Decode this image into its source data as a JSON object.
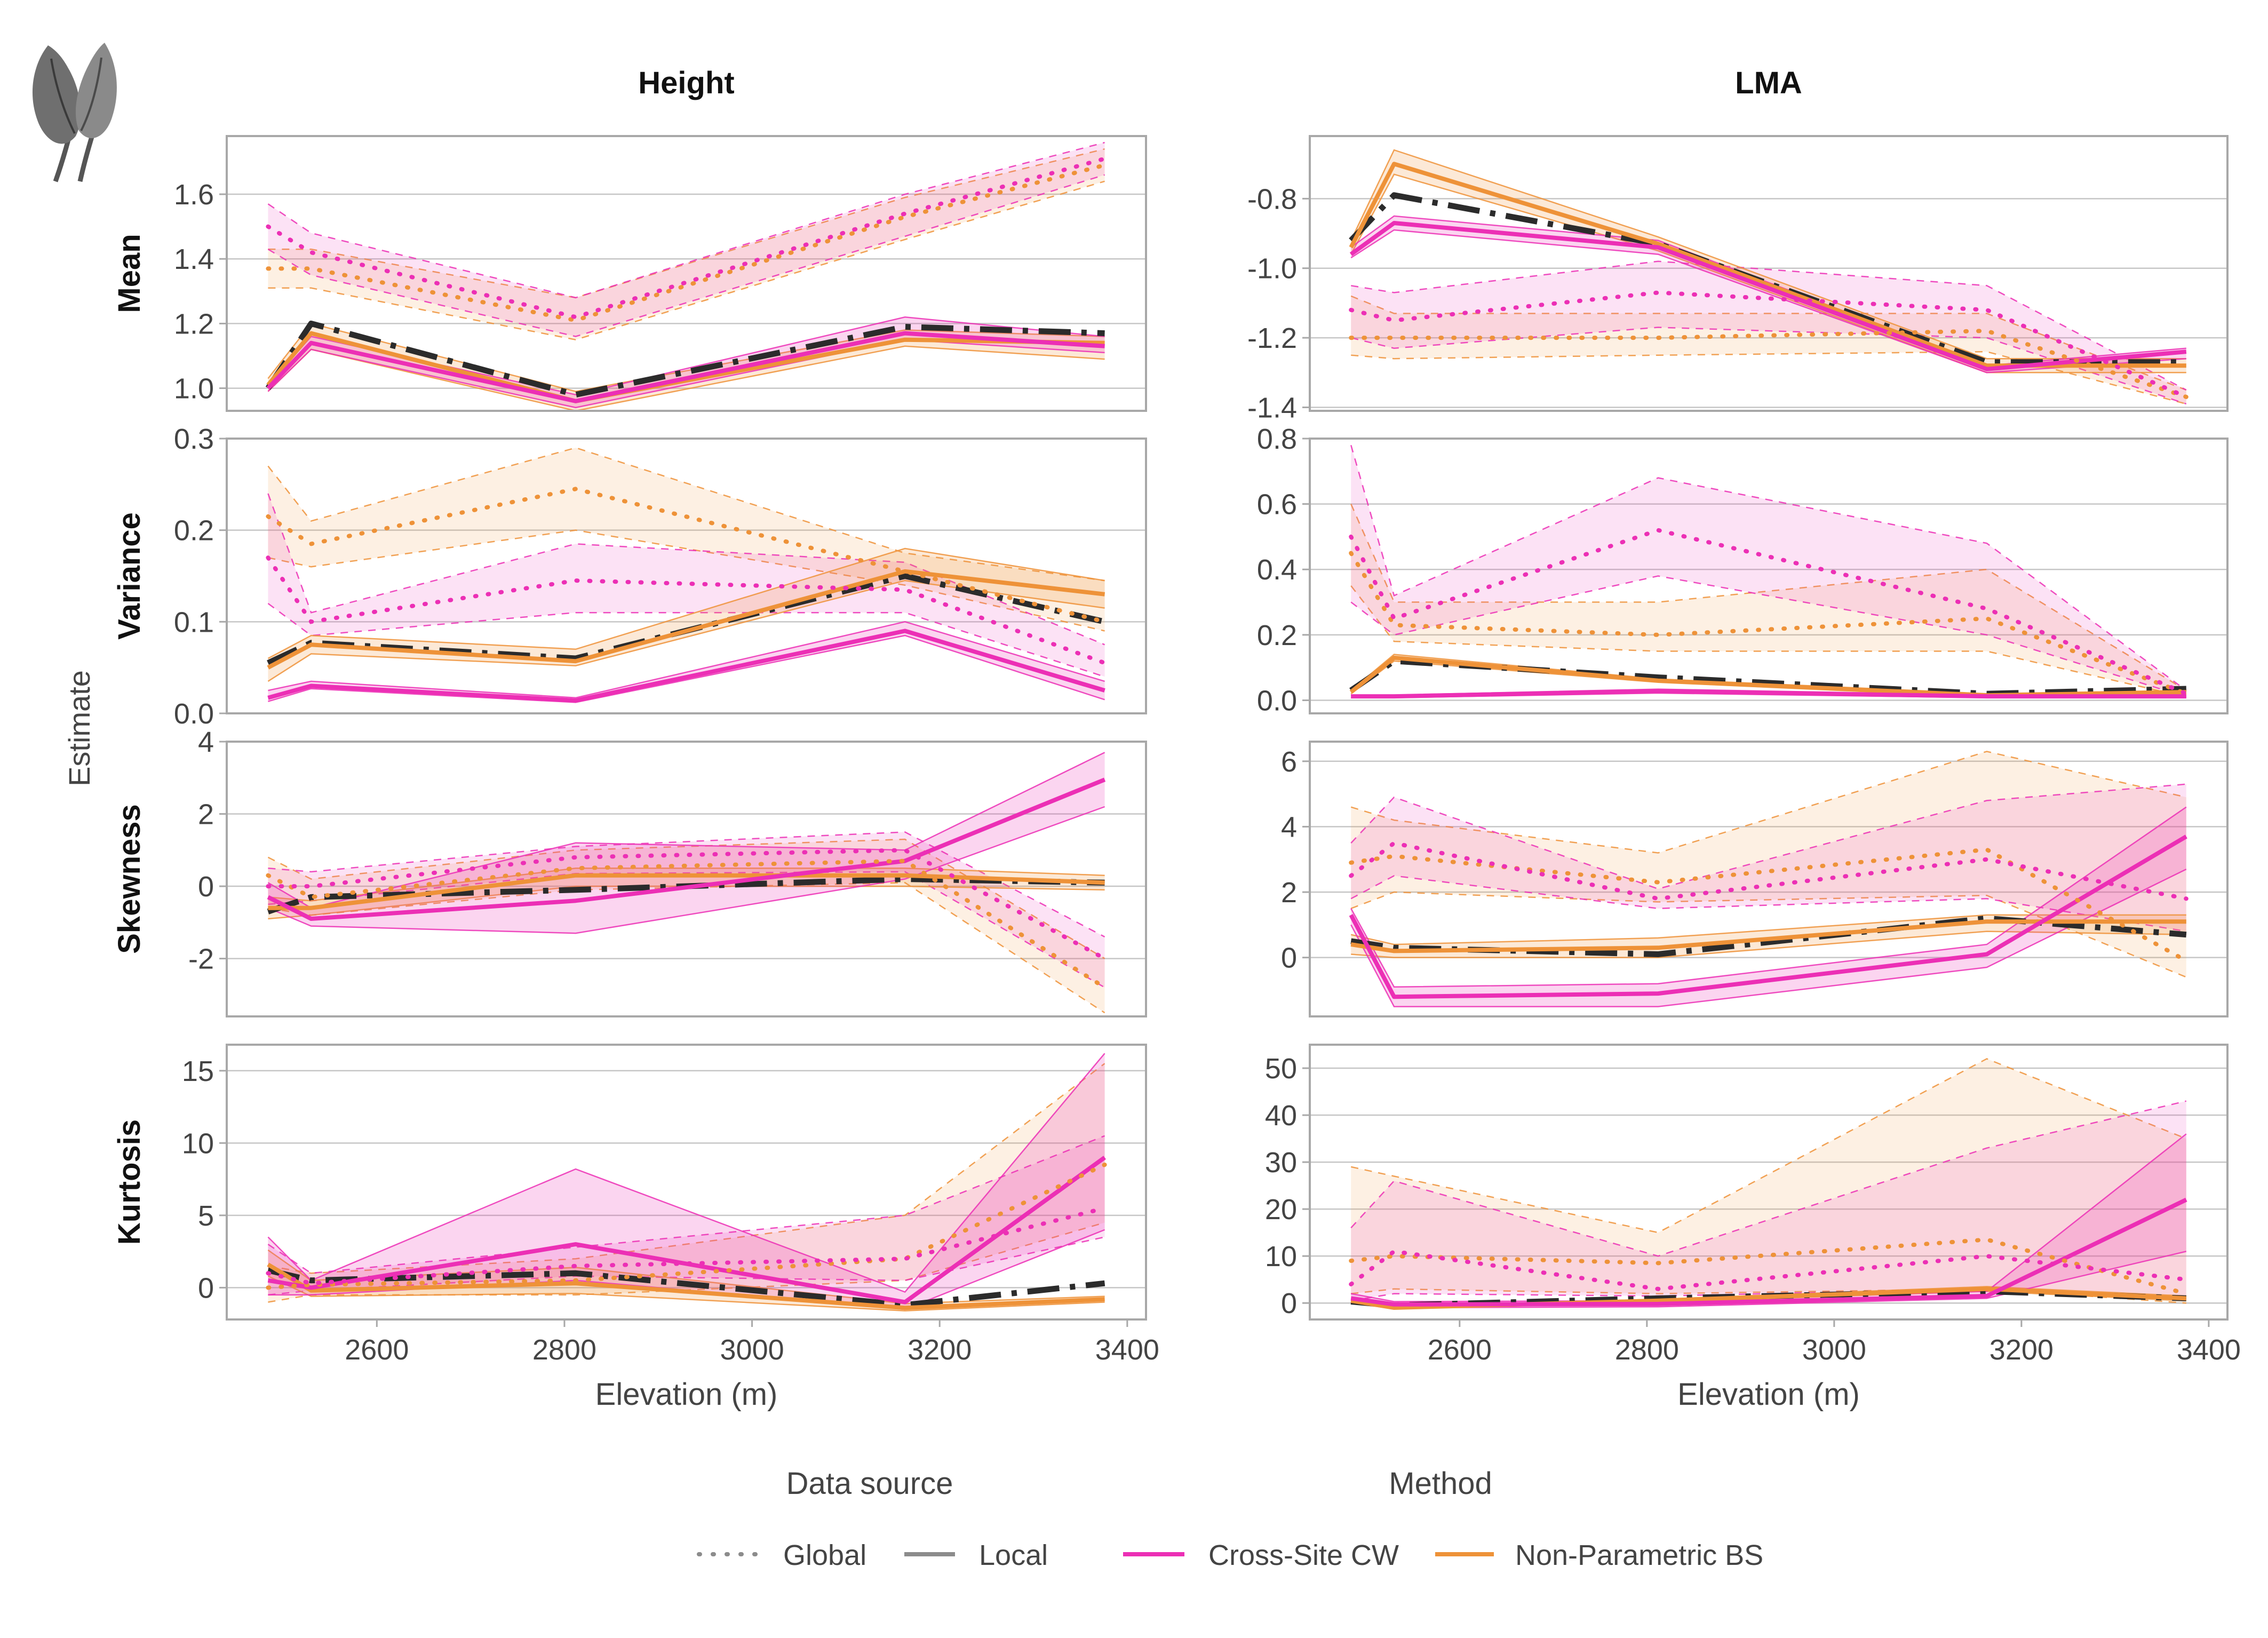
{
  "chart_data": {
    "type": "line",
    "xlabel": "Elevation (m)",
    "ylabel": "Estimate",
    "column_titles": [
      "Height",
      "LMA"
    ],
    "row_titles": [
      "Mean",
      "Variance",
      "Skewness",
      "Kurtosis"
    ],
    "x": [
      2484,
      2530,
      2812,
      3163,
      3376
    ],
    "xlim": [
      2440,
      3420
    ],
    "xticks": [
      2600,
      2800,
      3000,
      3200,
      3400
    ],
    "grid": true,
    "legend_position": "bottom",
    "legend": {
      "data_source_title": "Data source",
      "method_title": "Method",
      "global_label": "Global",
      "local_label": "Local",
      "cw_label": "Cross-Site CW",
      "bs_label": "Non-Parametric BS"
    },
    "colors": {
      "cw": "#ec2fb5",
      "bs": "#ee9238",
      "black": "#2b2b2b",
      "grid": "#c6c6c6",
      "frame": "#a8a8a8",
      "text": "#444444"
    },
    "panels": [
      {
        "trait": "Height",
        "moment": "Mean",
        "ylim": [
          0.93,
          1.78
        ],
        "yticks": [
          1.0,
          1.2,
          1.4,
          1.6
        ],
        "ytick_labels": [
          "1.0",
          "1.2",
          "1.4",
          "1.6"
        ],
        "series": {
          "global_cw": {
            "y": [
              1.5,
              1.42,
              1.22,
              1.54,
              1.71
            ],
            "lo": [
              1.43,
              1.35,
              1.16,
              1.47,
              1.66
            ],
            "hi": [
              1.57,
              1.48,
              1.28,
              1.6,
              1.76
            ]
          },
          "global_bs": {
            "y": [
              1.37,
              1.37,
              1.21,
              1.53,
              1.69
            ],
            "lo": [
              1.31,
              1.31,
              1.15,
              1.46,
              1.64
            ],
            "hi": [
              1.43,
              1.43,
              1.28,
              1.59,
              1.74
            ]
          },
          "local_cw": {
            "y": [
              1.0,
              1.14,
              0.96,
              1.17,
              1.13
            ],
            "lo": [
              0.99,
              1.12,
              0.94,
              1.15,
              1.11
            ],
            "hi": [
              1.01,
              1.16,
              0.98,
              1.22,
              1.16
            ]
          },
          "local_bs": {
            "y": [
              1.01,
              1.17,
              0.96,
              1.15,
              1.14
            ],
            "lo": [
              0.99,
              1.12,
              0.93,
              1.13,
              1.09
            ],
            "hi": [
              1.03,
              1.2,
              0.99,
              1.18,
              1.16
            ]
          },
          "local_black": {
            "y": [
              1.0,
              1.2,
              0.98,
              1.19,
              1.17
            ]
          }
        }
      },
      {
        "trait": "LMA",
        "moment": "Mean",
        "ylim": [
          -1.41,
          -0.62
        ],
        "yticks": [
          -1.4,
          -1.2,
          -1.0,
          -0.8
        ],
        "ytick_labels": [
          "-1.4",
          "-1.2",
          "-1.0",
          "-0.8"
        ],
        "series": {
          "global_cw": {
            "y": [
              -1.12,
              -1.15,
              -1.07,
              -1.12,
              -1.37
            ],
            "lo": [
              -1.2,
              -1.23,
              -1.17,
              -1.2,
              -1.39
            ],
            "hi": [
              -1.05,
              -1.07,
              -0.98,
              -1.05,
              -1.35
            ]
          },
          "global_bs": {
            "y": [
              -1.2,
              -1.2,
              -1.2,
              -1.18,
              -1.37
            ],
            "lo": [
              -1.25,
              -1.26,
              -1.25,
              -1.24,
              -1.39
            ],
            "hi": [
              -1.08,
              -1.13,
              -1.13,
              -1.13,
              -1.35
            ]
          },
          "local_cw": {
            "y": [
              -0.96,
              -0.87,
              -0.94,
              -1.29,
              -1.24
            ],
            "lo": [
              -0.97,
              -0.89,
              -0.96,
              -1.3,
              -1.26
            ],
            "hi": [
              -0.94,
              -0.85,
              -0.92,
              -1.28,
              -1.23
            ]
          },
          "local_bs": {
            "y": [
              -0.94,
              -0.7,
              -0.93,
              -1.28,
              -1.28
            ],
            "lo": [
              -0.96,
              -0.73,
              -0.95,
              -1.3,
              -1.3
            ],
            "hi": [
              -0.92,
              -0.66,
              -0.91,
              -1.26,
              -1.26
            ]
          },
          "local_black": {
            "y": [
              -0.92,
              -0.79,
              -0.93,
              -1.27,
              -1.27
            ]
          }
        }
      },
      {
        "trait": "Height",
        "moment": "Variance",
        "ylim": [
          0.0,
          0.3
        ],
        "yticks": [
          0.0,
          0.1,
          0.2,
          0.3
        ],
        "ytick_labels": [
          "0.0",
          "0.1",
          "0.2",
          "0.3"
        ],
        "series": {
          "global_cw": {
            "y": [
              0.17,
              0.1,
              0.145,
              0.135,
              0.055
            ],
            "lo": [
              0.12,
              0.085,
              0.11,
              0.11,
              0.04
            ],
            "hi": [
              0.24,
              0.11,
              0.185,
              0.165,
              0.075
            ]
          },
          "global_bs": {
            "y": [
              0.215,
              0.185,
              0.245,
              0.155,
              0.1
            ],
            "lo": [
              0.17,
              0.16,
              0.2,
              0.14,
              0.09
            ],
            "hi": [
              0.27,
              0.21,
              0.29,
              0.175,
              0.145
            ]
          },
          "local_cw": {
            "y": [
              0.017,
              0.03,
              0.014,
              0.09,
              0.025
            ],
            "lo": [
              0.013,
              0.027,
              0.012,
              0.085,
              0.015
            ],
            "hi": [
              0.025,
              0.035,
              0.017,
              0.1,
              0.035
            ]
          },
          "local_bs": {
            "y": [
              0.05,
              0.075,
              0.057,
              0.155,
              0.13
            ],
            "lo": [
              0.035,
              0.065,
              0.052,
              0.145,
              0.115
            ],
            "hi": [
              0.06,
              0.085,
              0.07,
              0.18,
              0.145
            ]
          },
          "local_black": {
            "y": [
              0.055,
              0.077,
              0.06,
              0.15,
              0.1
            ]
          }
        }
      },
      {
        "trait": "LMA",
        "moment": "Variance",
        "ylim": [
          -0.04,
          0.8
        ],
        "yticks": [
          0.0,
          0.2,
          0.4,
          0.6,
          0.8
        ],
        "ytick_labels": [
          "0.0",
          "0.2",
          "0.4",
          "0.6",
          "0.8"
        ],
        "series": {
          "global_cw": {
            "y": [
              0.5,
              0.25,
              0.52,
              0.28,
              0.02
            ],
            "lo": [
              0.3,
              0.2,
              0.38,
              0.2,
              0.01
            ],
            "hi": [
              0.78,
              0.32,
              0.68,
              0.48,
              0.03
            ]
          },
          "global_bs": {
            "y": [
              0.45,
              0.23,
              0.2,
              0.25,
              0.02
            ],
            "lo": [
              0.35,
              0.18,
              0.15,
              0.15,
              0.01
            ],
            "hi": [
              0.6,
              0.3,
              0.3,
              0.4,
              0.03
            ]
          },
          "local_cw": {
            "y": [
              0.012,
              0.012,
              0.028,
              0.012,
              0.012
            ],
            "lo": [
              0.008,
              0.008,
              0.022,
              0.008,
              0.008
            ],
            "hi": [
              0.016,
              0.016,
              0.034,
              0.016,
              0.016
            ]
          },
          "local_bs": {
            "y": [
              0.025,
              0.13,
              0.06,
              0.015,
              0.025
            ],
            "lo": [
              0.02,
              0.12,
              0.055,
              0.01,
              0.02
            ],
            "hi": [
              0.03,
              0.14,
              0.065,
              0.02,
              0.03
            ]
          },
          "local_black": {
            "y": [
              0.03,
              0.12,
              0.07,
              0.02,
              0.035
            ]
          }
        }
      },
      {
        "trait": "Height",
        "moment": "Skewness",
        "ylim": [
          -3.6,
          4.0
        ],
        "yticks": [
          -2,
          0,
          2,
          4
        ],
        "ytick_labels": [
          "-2",
          "0",
          "2",
          "4"
        ],
        "series": {
          "global_cw": {
            "y": [
              0.0,
              0.0,
              0.8,
              1.0,
              -2.0
            ],
            "lo": [
              -0.5,
              -0.4,
              0.35,
              0.4,
              -2.8
            ],
            "hi": [
              0.5,
              0.4,
              1.1,
              1.5,
              -1.4
            ]
          },
          "global_bs": {
            "y": [
              0.3,
              -0.3,
              0.5,
              0.7,
              -2.8
            ],
            "lo": [
              -0.6,
              -0.8,
              -0.1,
              0.1,
              -3.5
            ],
            "hi": [
              0.8,
              0.2,
              1.0,
              1.3,
              -2.0
            ]
          },
          "local_cw": {
            "y": [
              -0.3,
              -0.9,
              -0.4,
              0.7,
              2.95
            ],
            "lo": [
              -0.6,
              -1.1,
              -1.3,
              0.2,
              2.2
            ],
            "hi": [
              0.1,
              -0.6,
              1.2,
              1.0,
              3.7
            ]
          },
          "local_bs": {
            "y": [
              -0.6,
              -0.6,
              0.3,
              0.3,
              0.1
            ],
            "lo": [
              -0.9,
              -0.8,
              0.0,
              0.0,
              -0.1
            ],
            "hi": [
              -0.3,
              -0.4,
              0.5,
              0.5,
              0.3
            ]
          },
          "local_black": {
            "y": [
              -0.7,
              -0.3,
              -0.1,
              0.2,
              0.1
            ]
          }
        }
      },
      {
        "trait": "LMA",
        "moment": "Skewness",
        "ylim": [
          -1.8,
          6.6
        ],
        "yticks": [
          0,
          2,
          4,
          6
        ],
        "ytick_labels": [
          "0",
          "2",
          "4",
          "6"
        ],
        "series": {
          "global_cw": {
            "y": [
              2.5,
              3.5,
              1.8,
              3.0,
              1.8
            ],
            "lo": [
              1.8,
              2.5,
              1.5,
              1.8,
              0.8
            ],
            "hi": [
              3.5,
              4.9,
              2.1,
              4.8,
              5.3
            ]
          },
          "global_bs": {
            "y": [
              2.9,
              3.1,
              2.3,
              3.3,
              -0.1
            ],
            "lo": [
              1.5,
              2.0,
              1.7,
              1.9,
              -0.6
            ],
            "hi": [
              4.6,
              4.2,
              3.2,
              6.3,
              4.9
            ]
          },
          "local_cw": {
            "y": [
              1.3,
              -1.2,
              -1.1,
              0.1,
              3.7
            ],
            "lo": [
              1.0,
              -1.5,
              -1.5,
              -0.3,
              2.7
            ],
            "hi": [
              1.5,
              -0.9,
              -0.8,
              0.4,
              4.6
            ]
          },
          "local_bs": {
            "y": [
              0.4,
              0.2,
              0.3,
              1.1,
              1.1
            ],
            "lo": [
              0.1,
              0.0,
              0.0,
              0.8,
              0.7
            ],
            "hi": [
              0.7,
              0.4,
              0.6,
              1.3,
              1.3
            ]
          },
          "local_black": {
            "y": [
              0.5,
              0.3,
              0.1,
              1.2,
              0.7
            ]
          }
        }
      },
      {
        "trait": "Height",
        "moment": "Kurtosis",
        "ylim": [
          -2.2,
          16.8
        ],
        "yticks": [
          0,
          5,
          10,
          15
        ],
        "ytick_labels": [
          "0",
          "5",
          "10",
          "15"
        ],
        "series": {
          "global_cw": {
            "y": [
              1.0,
              0.3,
              1.5,
              2.0,
              5.5
            ],
            "lo": [
              -0.5,
              -0.2,
              0.8,
              0.5,
              3.5
            ],
            "hi": [
              3.0,
              1.0,
              2.8,
              5.0,
              10.5
            ]
          },
          "global_bs": {
            "y": [
              0.0,
              0.2,
              0.5,
              2.0,
              8.5
            ],
            "lo": [
              -1.0,
              -0.5,
              -0.5,
              0.5,
              4.5
            ],
            "hi": [
              1.5,
              1.0,
              2.0,
              5.0,
              15.5
            ]
          },
          "local_cw": {
            "y": [
              0.5,
              0.0,
              3.0,
              -1.0,
              9.0
            ],
            "lo": [
              -0.5,
              -0.5,
              0.5,
              -1.5,
              4.0
            ],
            "hi": [
              3.5,
              0.5,
              8.2,
              -0.3,
              16.2
            ]
          },
          "local_bs": {
            "y": [
              1.6,
              -0.2,
              0.3,
              -1.4,
              -0.8
            ],
            "lo": [
              0.8,
              -0.6,
              -0.4,
              -1.6,
              -1.0
            ],
            "hi": [
              2.6,
              0.5,
              1.4,
              -1.1,
              -0.6
            ]
          },
          "local_black": {
            "y": [
              1.2,
              0.5,
              1.0,
              -1.2,
              0.3
            ]
          }
        }
      },
      {
        "trait": "LMA",
        "moment": "Kurtosis",
        "ylim": [
          -3.5,
          55
        ],
        "yticks": [
          0,
          10,
          20,
          30,
          40,
          50
        ],
        "ytick_labels": [
          "0",
          "10",
          "20",
          "30",
          "40",
          "50"
        ],
        "series": {
          "global_cw": {
            "y": [
              4.0,
              11.0,
              3.0,
              10.0,
              5.0
            ],
            "lo": [
              0.5,
              2.0,
              1.5,
              3.0,
              1.0
            ],
            "hi": [
              16.0,
              26.0,
              10.0,
              33.0,
              43.0
            ]
          },
          "global_bs": {
            "y": [
              9.0,
              10.0,
              8.5,
              13.5,
              2.0
            ],
            "lo": [
              2.0,
              3.0,
              2.0,
              3.0,
              0.0
            ],
            "hi": [
              29.0,
              27.0,
              15.0,
              52.0,
              35.0
            ]
          },
          "local_cw": {
            "y": [
              1.0,
              -0.3,
              -0.2,
              1.5,
              22.0
            ],
            "lo": [
              0.3,
              -1.0,
              -0.8,
              1.0,
              11.0
            ],
            "hi": [
              2.0,
              0.3,
              0.5,
              2.5,
              36.0
            ]
          },
          "local_bs": {
            "y": [
              0.5,
              -1.0,
              0.5,
              3.0,
              1.0
            ],
            "lo": [
              0.0,
              -1.2,
              0.2,
              2.5,
              0.5
            ],
            "hi": [
              1.0,
              -0.7,
              0.8,
              3.5,
              1.5
            ]
          },
          "local_black": {
            "y": [
              0.3,
              -0.5,
              1.0,
              2.5,
              1.0
            ]
          }
        }
      }
    ]
  }
}
